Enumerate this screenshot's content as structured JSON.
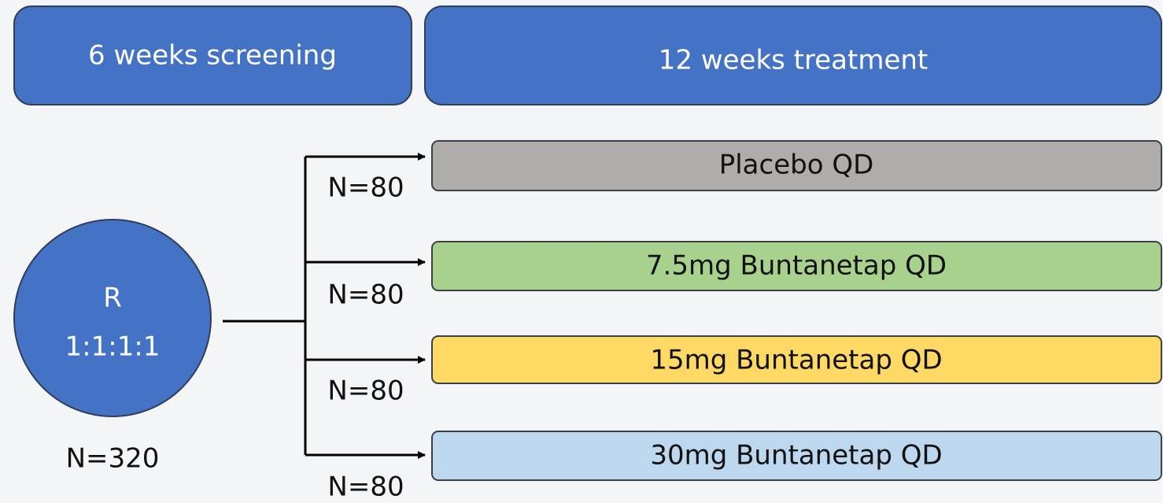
{
  "header": {
    "screening": "6 weeks screening",
    "treatment": "12 weeks treatment"
  },
  "randomization": {
    "label": "R",
    "ratio": "1:1:1:1",
    "n": "N=320"
  },
  "arms": [
    {
      "label": "Placebo QD",
      "n": "N=80"
    },
    {
      "label": "7.5mg Buntanetap QD",
      "n": "N=80"
    },
    {
      "label": "15mg Buntanetap QD",
      "n": "N=80"
    },
    {
      "label": "30mg Buntanetap QD",
      "n": "N=80"
    }
  ]
}
